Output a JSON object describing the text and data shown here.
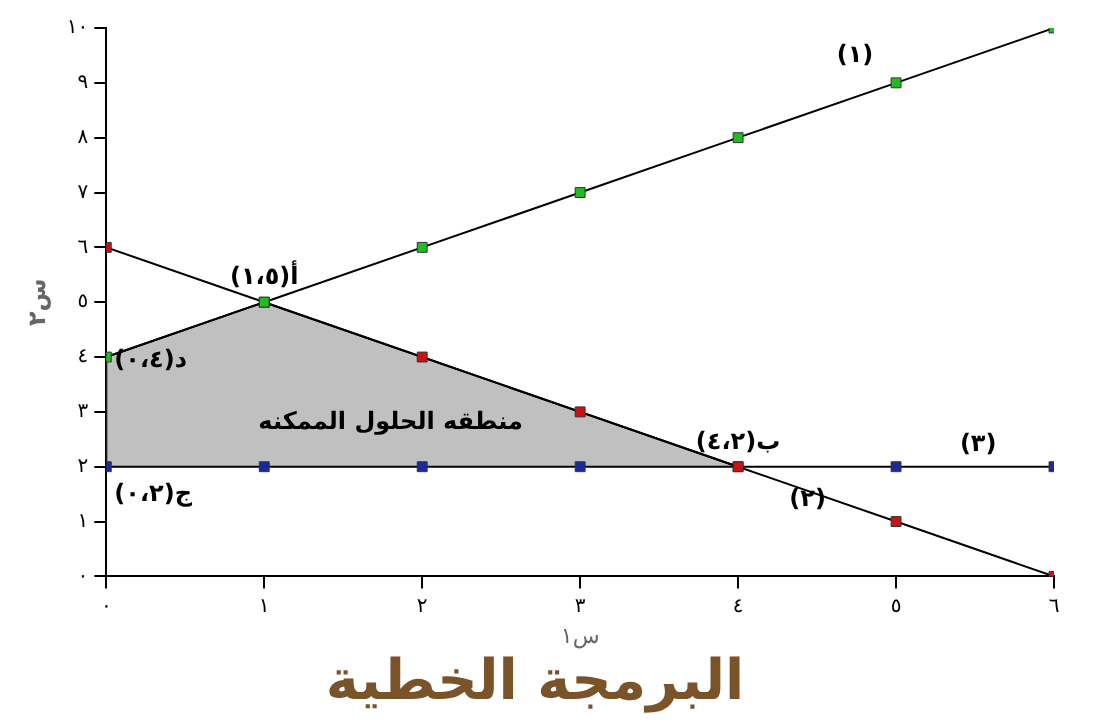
{
  "chart_data": {
    "type": "line",
    "title": "البرمجة الخطية",
    "xlabel": "س١",
    "ylabel": "س٢",
    "x": [
      0,
      1,
      2,
      3,
      4,
      5,
      6
    ],
    "xlim": [
      0,
      6
    ],
    "ylim": [
      0,
      10
    ],
    "xticks": [
      {
        "value": 0,
        "label": "٠"
      },
      {
        "value": 1,
        "label": "١"
      },
      {
        "value": 2,
        "label": "٢"
      },
      {
        "value": 3,
        "label": "٣"
      },
      {
        "value": 4,
        "label": "٤"
      },
      {
        "value": 5,
        "label": "٥"
      },
      {
        "value": 6,
        "label": "٦"
      }
    ],
    "yticks": [
      {
        "value": 0,
        "label": "٠"
      },
      {
        "value": 1,
        "label": "١"
      },
      {
        "value": 2,
        "label": "٢"
      },
      {
        "value": 3,
        "label": "٣"
      },
      {
        "value": 4,
        "label": "٤"
      },
      {
        "value": 5,
        "label": "٥"
      },
      {
        "value": 6,
        "label": "٦"
      },
      {
        "value": 7,
        "label": "٧"
      },
      {
        "value": 8,
        "label": "٨"
      },
      {
        "value": 9,
        "label": "٩"
      },
      {
        "value": 10,
        "label": "١٠"
      }
    ],
    "grid": false,
    "legend": false,
    "marker": "square",
    "line_style": "solid",
    "series": [
      {
        "type": "area",
        "color": "#c0c0c0",
        "marker": "none",
        "x": [
          0,
          0,
          1,
          4
        ],
        "values": [
          2,
          4,
          5,
          2
        ]
      },
      {
        "color": "#22bb22",
        "values": [
          4,
          5,
          6,
          7,
          8,
          9,
          10
        ]
      },
      {
        "color": "#cc1111",
        "values": [
          6,
          5,
          4,
          3,
          2,
          1,
          0
        ]
      },
      {
        "color": "#1a2a9a",
        "values": [
          2,
          2,
          2,
          2,
          2,
          2,
          2
        ]
      }
    ],
    "annotations": [
      "(١)",
      "(٢)",
      "(٣)",
      {
        "text": "أ(١،٥)",
        "x": 1,
        "y": 5
      },
      {
        "text": "ب(٤،٢)",
        "x": 4,
        "y": 2
      },
      {
        "text": "ج(٠،٢)",
        "x": 0,
        "y": 2
      },
      {
        "text": "د(٠،٤)",
        "x": 0,
        "y": 4
      },
      "منطقه الحلول الممكنه"
    ]
  }
}
